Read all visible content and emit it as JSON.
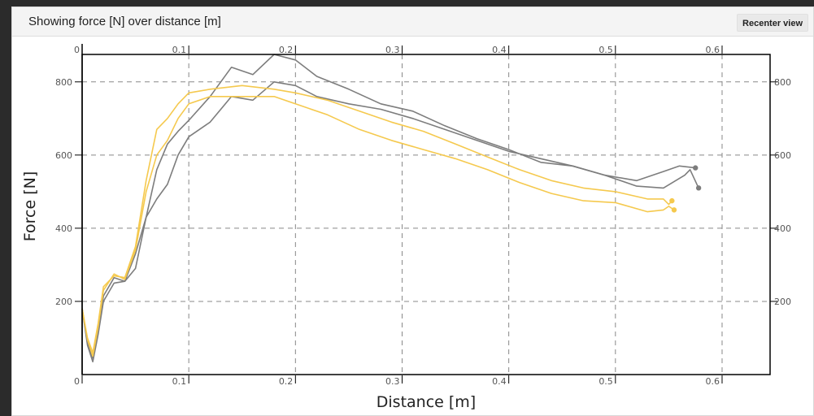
{
  "panel": {
    "title": "Showing force [N] over distance [m]",
    "recenter_label": "Recenter view"
  },
  "chart_data": {
    "type": "line",
    "xlabel": "Distance [m]",
    "ylabel": "Force [N]",
    "xlim": [
      0,
      0.645
    ],
    "ylim": [
      0,
      875
    ],
    "xticks": [
      0,
      0.1,
      0.2,
      0.3,
      0.4,
      0.5,
      0.6
    ],
    "xtick_labels": [
      "0",
      "0.1",
      "0.2",
      "0.3",
      "0.4",
      "0.5",
      "0.6"
    ],
    "yticks_left": [
      200,
      400,
      600,
      800
    ],
    "yticks_right": [
      200,
      400,
      600,
      800
    ],
    "grid": true,
    "grid_style": "dashed",
    "colors": {
      "gray": "#7d7d7d",
      "gold": "#f5c94e",
      "axis": "#000000",
      "grid": "#888888"
    },
    "series": [
      {
        "color": "#7d7d7d",
        "end_marker": true,
        "x": [
          0,
          0.005,
          0.01,
          0.015,
          0.02,
          0.03,
          0.04,
          0.05,
          0.06,
          0.07,
          0.08,
          0.09,
          0.1,
          0.12,
          0.14,
          0.16,
          0.18,
          0.2,
          0.22,
          0.25,
          0.28,
          0.31,
          0.34,
          0.37,
          0.4,
          0.43,
          0.46,
          0.49,
          0.52,
          0.545,
          0.56,
          0.575
        ],
        "y": [
          180,
          90,
          45,
          120,
          215,
          265,
          255,
          290,
          430,
          560,
          630,
          665,
          695,
          760,
          840,
          820,
          875,
          860,
          815,
          780,
          740,
          720,
          680,
          645,
          615,
          580,
          570,
          545,
          530,
          555,
          570,
          565
        ]
      },
      {
        "color": "#7d7d7d",
        "end_marker": true,
        "x": [
          0,
          0.005,
          0.01,
          0.015,
          0.02,
          0.03,
          0.04,
          0.05,
          0.06,
          0.07,
          0.08,
          0.09,
          0.1,
          0.12,
          0.14,
          0.16,
          0.18,
          0.2,
          0.22,
          0.25,
          0.28,
          0.31,
          0.34,
          0.37,
          0.4,
          0.43,
          0.46,
          0.49,
          0.52,
          0.545,
          0.565,
          0.57,
          0.578
        ],
        "y": [
          180,
          80,
          35,
          110,
          200,
          250,
          255,
          330,
          430,
          480,
          520,
          600,
          650,
          690,
          760,
          750,
          800,
          790,
          760,
          740,
          725,
          700,
          670,
          640,
          610,
          590,
          570,
          545,
          515,
          510,
          545,
          560,
          510
        ]
      },
      {
        "color": "#f5c94e",
        "end_marker": true,
        "x": [
          0,
          0.005,
          0.01,
          0.015,
          0.02,
          0.03,
          0.04,
          0.05,
          0.06,
          0.07,
          0.08,
          0.09,
          0.1,
          0.12,
          0.15,
          0.18,
          0.2,
          0.23,
          0.26,
          0.29,
          0.32,
          0.35,
          0.38,
          0.41,
          0.44,
          0.47,
          0.5,
          0.53,
          0.545,
          0.55,
          0.553
        ],
        "y": [
          180,
          100,
          60,
          140,
          240,
          270,
          265,
          350,
          530,
          670,
          700,
          740,
          770,
          780,
          790,
          780,
          770,
          750,
          720,
          690,
          665,
          630,
          595,
          560,
          530,
          510,
          500,
          480,
          480,
          465,
          475
        ]
      },
      {
        "color": "#f5c94e",
        "end_marker": true,
        "x": [
          0,
          0.005,
          0.01,
          0.015,
          0.02,
          0.03,
          0.04,
          0.05,
          0.06,
          0.07,
          0.08,
          0.09,
          0.1,
          0.12,
          0.15,
          0.18,
          0.2,
          0.23,
          0.26,
          0.29,
          0.32,
          0.35,
          0.38,
          0.41,
          0.44,
          0.47,
          0.5,
          0.53,
          0.545,
          0.55,
          0.555
        ],
        "y": [
          180,
          95,
          50,
          130,
          230,
          275,
          260,
          340,
          500,
          600,
          640,
          700,
          740,
          760,
          760,
          760,
          740,
          710,
          670,
          640,
          615,
          590,
          560,
          525,
          495,
          475,
          470,
          445,
          450,
          460,
          450
        ]
      }
    ]
  }
}
